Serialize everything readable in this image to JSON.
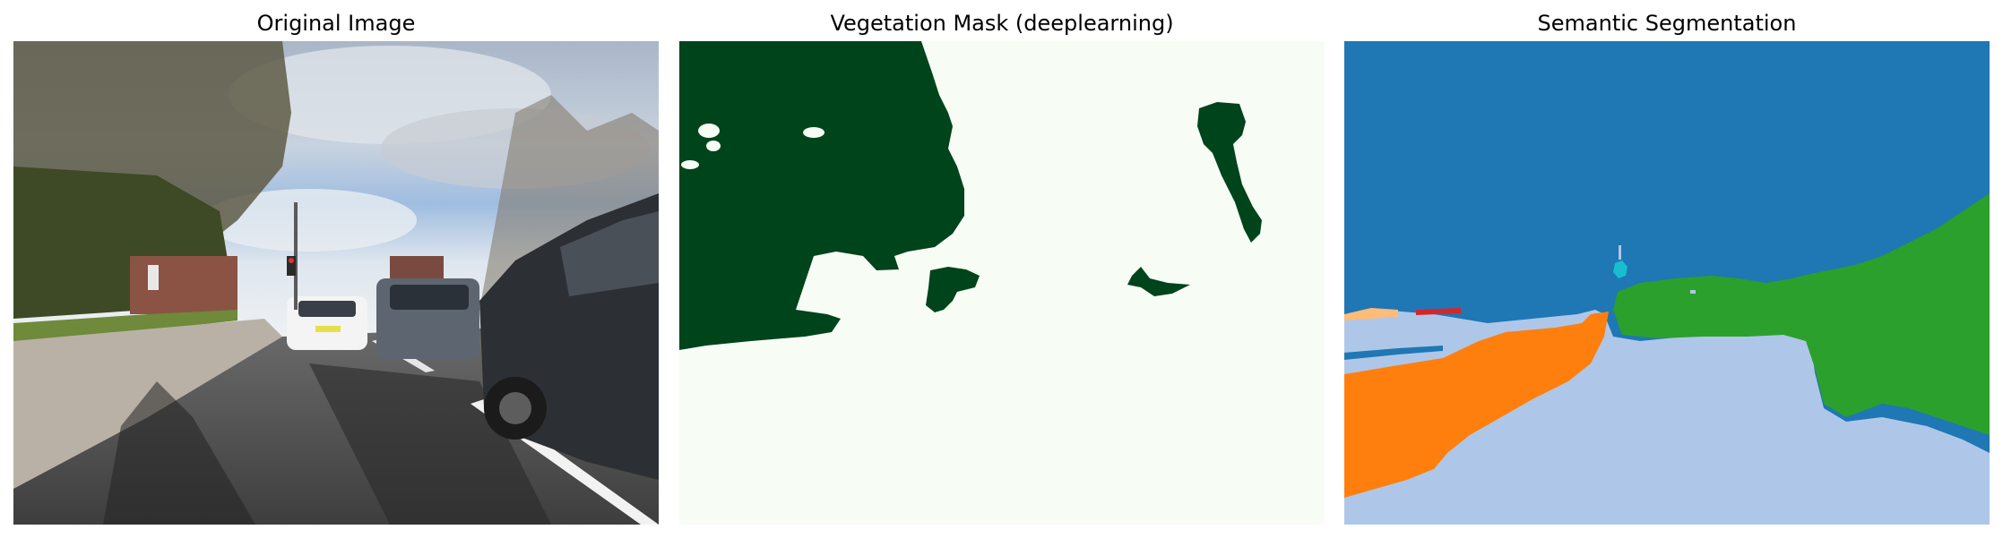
{
  "panels": [
    {
      "title": "Original Image"
    },
    {
      "title": "Vegetation Mask (deeplearning)"
    },
    {
      "title": "Semantic Segmentation"
    }
  ],
  "colors": {
    "mask_background": "#f7fcf5",
    "mask_vegetation": "#00441b",
    "seg_sky": "#1f77b4",
    "seg_road": "#aec7e8",
    "seg_vegetation": "#2ca02c",
    "seg_sidewalk": "#ff7f0e",
    "seg_building": "#ffbb78",
    "seg_pole": "#d62728",
    "seg_sign": "#17becf"
  }
}
